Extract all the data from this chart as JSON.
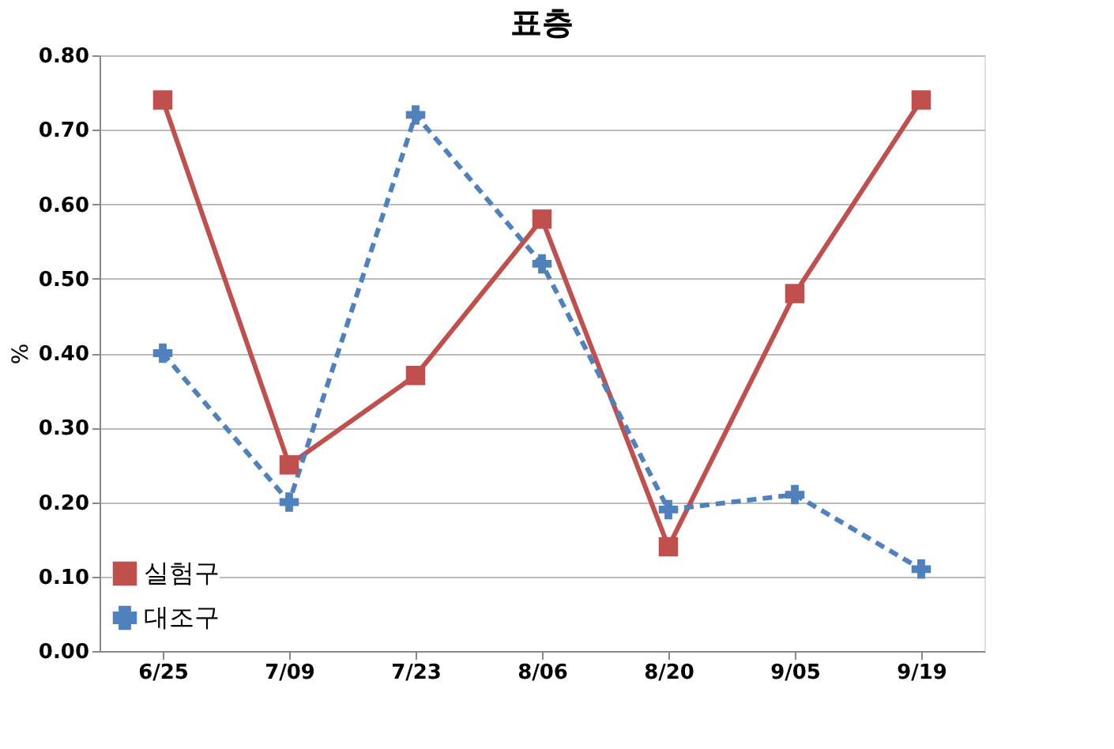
{
  "chart_data": {
    "type": "line",
    "title": "표층",
    "ylabel": "%",
    "categories": [
      "6/25",
      "7/09",
      "7/23",
      "8/06",
      "8/20",
      "9/05",
      "9/19"
    ],
    "series": [
      {
        "name": "실험구",
        "color": "#c0504d",
        "marker": "square",
        "line_style": "solid",
        "values": [
          0.74,
          0.25,
          0.37,
          0.58,
          0.14,
          0.48,
          0.74
        ]
      },
      {
        "name": "대조구",
        "color": "#4f81bd",
        "marker": "cross",
        "line_style": "dashed",
        "values": [
          0.4,
          0.2,
          0.72,
          0.52,
          0.19,
          0.21,
          0.11
        ]
      }
    ],
    "ylim": [
      0,
      0.8
    ],
    "yticks": [
      {
        "value": 0,
        "label": "0.00"
      },
      {
        "value": 0.1,
        "label": "0.10"
      },
      {
        "value": 0.2,
        "label": "0.20"
      },
      {
        "value": 0.3,
        "label": "0.30"
      },
      {
        "value": 0.4,
        "label": "0.40"
      },
      {
        "value": 0.5,
        "label": "0.50"
      },
      {
        "value": 0.6,
        "label": "0.60"
      },
      {
        "value": 0.7,
        "label": "0.70"
      },
      {
        "value": 0.8,
        "label": "0.80"
      }
    ],
    "grid": "y",
    "legend": "bottom left"
  }
}
